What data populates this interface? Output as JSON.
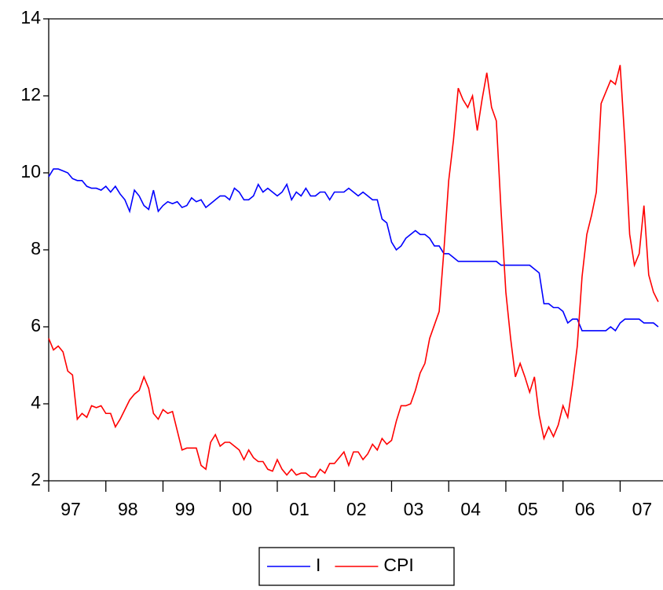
{
  "chart_data": {
    "type": "line",
    "x": [
      1997,
      1997.0833,
      1997.1667,
      1997.25,
      1997.3333,
      1997.4167,
      1997.5,
      1997.5833,
      1997.6667,
      1997.75,
      1997.8333,
      1997.9167,
      1998,
      1998.0833,
      1998.1667,
      1998.25,
      1998.3333,
      1998.4167,
      1998.5,
      1998.5833,
      1998.6667,
      1998.75,
      1998.8333,
      1998.9167,
      1999,
      1999.0833,
      1999.1667,
      1999.25,
      1999.3333,
      1999.4167,
      1999.5,
      1999.5833,
      1999.6667,
      1999.75,
      1999.8333,
      1999.9167,
      2000,
      2000.0833,
      2000.1667,
      2000.25,
      2000.3333,
      2000.4167,
      2000.5,
      2000.5833,
      2000.6667,
      2000.75,
      2000.8333,
      2000.9167,
      2001,
      2001.0833,
      2001.1667,
      2001.25,
      2001.3333,
      2001.4167,
      2001.5,
      2001.5833,
      2001.6667,
      2001.75,
      2001.8333,
      2001.9167,
      2002,
      2002.0833,
      2002.1667,
      2002.25,
      2002.3333,
      2002.4167,
      2002.5,
      2002.5833,
      2002.6667,
      2002.75,
      2002.8333,
      2002.9167,
      2003,
      2003.0833,
      2003.1667,
      2003.25,
      2003.3333,
      2003.4167,
      2003.5,
      2003.5833,
      2003.6667,
      2003.75,
      2003.8333,
      2003.9167,
      2004,
      2004.0833,
      2004.1667,
      2004.25,
      2004.3333,
      2004.4167,
      2004.5,
      2004.5833,
      2004.6667,
      2004.75,
      2004.8333,
      2004.9167,
      2005,
      2005.0833,
      2005.1667,
      2005.25,
      2005.3333,
      2005.4167,
      2005.5,
      2005.5833,
      2005.6667,
      2005.75,
      2005.8333,
      2005.9167,
      2006,
      2006.0833,
      2006.1667,
      2006.25,
      2006.3333,
      2006.4167,
      2006.5,
      2006.5833,
      2006.6667,
      2006.75,
      2006.8333,
      2006.9167,
      2007,
      2007.0833,
      2007.1667,
      2007.25,
      2007.3333,
      2007.4167,
      2007.5,
      2007.5833,
      2007.6667
    ],
    "series": [
      {
        "name": "I",
        "color": "#0000ff",
        "values": [
          9.9,
          10.1,
          10.1,
          10.05,
          10.0,
          9.85,
          9.8,
          9.8,
          9.65,
          9.6,
          9.6,
          9.55,
          9.65,
          9.5,
          9.65,
          9.45,
          9.3,
          9.0,
          9.55,
          9.4,
          9.15,
          9.05,
          9.55,
          9.0,
          9.15,
          9.25,
          9.2,
          9.25,
          9.1,
          9.15,
          9.35,
          9.25,
          9.3,
          9.1,
          9.2,
          9.3,
          9.4,
          9.4,
          9.3,
          9.6,
          9.5,
          9.3,
          9.3,
          9.4,
          9.7,
          9.5,
          9.6,
          9.5,
          9.4,
          9.5,
          9.7,
          9.3,
          9.5,
          9.4,
          9.6,
          9.4,
          9.4,
          9.5,
          9.5,
          9.3,
          9.5,
          9.5,
          9.5,
          9.6,
          9.5,
          9.4,
          9.5,
          9.4,
          9.3,
          9.3,
          8.8,
          8.7,
          8.2,
          8.0,
          8.1,
          8.3,
          8.4,
          8.5,
          8.4,
          8.4,
          8.3,
          8.1,
          8.1,
          7.9,
          7.9,
          7.8,
          7.7,
          7.7,
          7.7,
          7.7,
          7.7,
          7.7,
          7.7,
          7.7,
          7.7,
          7.6,
          7.6,
          7.6,
          7.6,
          7.6,
          7.6,
          7.6,
          7.5,
          7.4,
          6.6,
          6.6,
          6.5,
          6.5,
          6.4,
          6.1,
          6.2,
          6.2,
          5.9,
          5.9,
          5.9,
          5.9,
          5.9,
          5.9,
          6.0,
          5.9,
          6.1,
          6.2,
          6.2,
          6.2,
          6.2,
          6.1,
          6.1,
          6.1,
          6.0
        ]
      },
      {
        "name": "CPI",
        "color": "#ff0000",
        "values": [
          5.7,
          5.4,
          5.5,
          5.35,
          4.85,
          4.75,
          3.6,
          3.75,
          3.65,
          3.95,
          3.9,
          3.95,
          3.75,
          3.75,
          3.4,
          3.6,
          3.85,
          4.1,
          4.25,
          4.35,
          4.7,
          4.4,
          3.75,
          3.6,
          3.85,
          3.75,
          3.8,
          3.3,
          2.8,
          2.85,
          2.85,
          2.85,
          2.4,
          2.3,
          3.0,
          3.2,
          2.9,
          3.0,
          3.0,
          2.9,
          2.8,
          2.55,
          2.8,
          2.6,
          2.5,
          2.5,
          2.3,
          2.25,
          2.55,
          2.3,
          2.15,
          2.3,
          2.15,
          2.2,
          2.2,
          2.1,
          2.1,
          2.3,
          2.2,
          2.45,
          2.45,
          2.6,
          2.75,
          2.4,
          2.75,
          2.75,
          2.55,
          2.7,
          2.95,
          2.8,
          3.1,
          2.95,
          3.05,
          3.55,
          3.95,
          3.95,
          4.0,
          4.35,
          4.8,
          5.05,
          5.7,
          6.05,
          6.4,
          8.0,
          9.8,
          10.85,
          12.2,
          11.9,
          11.7,
          12.0,
          11.1,
          11.9,
          12.6,
          11.7,
          11.35,
          9.0,
          6.9,
          5.7,
          4.7,
          5.05,
          4.7,
          4.3,
          4.7,
          3.7,
          3.1,
          3.4,
          3.15,
          3.45,
          3.95,
          3.65,
          4.5,
          5.5,
          7.3,
          8.4,
          8.9,
          9.5,
          11.8,
          12.1,
          12.4,
          12.3,
          12.8,
          10.8,
          8.4,
          7.6,
          7.9,
          9.15,
          7.35,
          6.9,
          6.65
        ]
      }
    ],
    "xlim": [
      1997,
      2007.75
    ],
    "xticks": [
      {
        "value": 1997,
        "label": "97"
      },
      {
        "value": 1998,
        "label": "98"
      },
      {
        "value": 1999,
        "label": "99"
      },
      {
        "value": 2000,
        "label": "00"
      },
      {
        "value": 2001,
        "label": "01"
      },
      {
        "value": 2002,
        "label": "02"
      },
      {
        "value": 2003,
        "label": "03"
      },
      {
        "value": 2004,
        "label": "04"
      },
      {
        "value": 2005,
        "label": "05"
      },
      {
        "value": 2006,
        "label": "06"
      },
      {
        "value": 2007,
        "label": "07"
      }
    ],
    "ylim": [
      2,
      14
    ],
    "yticks": [
      2,
      4,
      6,
      8,
      10,
      12,
      14
    ],
    "legend": "bottom"
  }
}
